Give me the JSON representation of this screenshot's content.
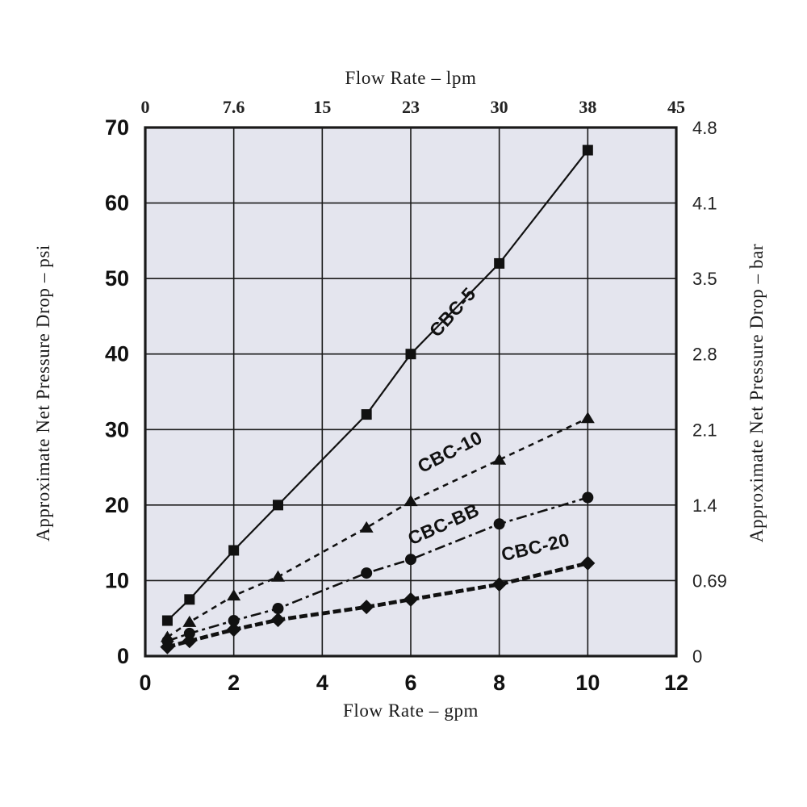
{
  "chart_data": {
    "type": "line",
    "title_top": "Flow Rate – lpm",
    "xlabel_bottom": "Flow Rate – gpm",
    "ylabel_left": "Approximate Net Pressure Drop – psi",
    "ylabel_right": "Approximate Net Pressure Drop – bar",
    "grid": true,
    "legend_position": "inline-curve-labels",
    "plot_bg": "#e4e5ee",
    "grid_color": "#1a1a1a",
    "line_color": "#111111",
    "x_axis_bottom": {
      "unit": "gpm",
      "range": [
        0,
        12
      ],
      "ticks": [
        0,
        2,
        4,
        6,
        8,
        10,
        12
      ]
    },
    "x_axis_top": {
      "unit": "lpm",
      "tick_labels": [
        "0",
        "7.6",
        "15",
        "23",
        "30",
        "38",
        "45"
      ],
      "tick_positions_gpm": [
        0,
        2,
        4,
        6,
        8,
        10,
        12
      ]
    },
    "y_axis_left": {
      "unit": "psi",
      "range": [
        0,
        70
      ],
      "ticks": [
        70,
        60,
        50,
        40,
        30,
        20,
        10,
        0
      ]
    },
    "y_axis_right": {
      "unit": "bar",
      "tick_labels": [
        "4.8",
        "4.1",
        "3.5",
        "2.8",
        "2.1",
        "1.4",
        "0.69",
        "0"
      ],
      "tick_positions_psi": [
        70,
        60,
        50,
        40,
        30,
        20,
        10,
        0
      ]
    },
    "series": [
      {
        "name": "CBC-5",
        "marker": "square",
        "line_style": "solid",
        "x": [
          0.5,
          1,
          2,
          3,
          5,
          6,
          8,
          10
        ],
        "y": [
          4.7,
          7.5,
          14,
          20,
          32,
          40,
          52,
          67
        ],
        "label_at": {
          "x": 7.05,
          "y": 45.0,
          "angle": -48
        }
      },
      {
        "name": "CBC-10",
        "marker": "triangle",
        "line_style": "dashed",
        "x": [
          0.5,
          1,
          2,
          3,
          5,
          6,
          8,
          10
        ],
        "y": [
          2.5,
          4.5,
          8,
          10.5,
          17,
          20.5,
          26,
          31.5
        ],
        "label_at": {
          "x": 6.95,
          "y": 26.3,
          "angle": -27
        }
      },
      {
        "name": "CBC-BB",
        "marker": "circle",
        "line_style": "dash-dot",
        "x": [
          0.5,
          1,
          2,
          3,
          5,
          6,
          8,
          10
        ],
        "y": [
          2,
          3,
          4.7,
          6.3,
          11,
          12.8,
          17.5,
          21
        ],
        "label_at": {
          "x": 6.8,
          "y": 16.7,
          "angle": -24
        }
      },
      {
        "name": "CBC-20",
        "marker": "diamond",
        "line_style": "bold-dashed",
        "x": [
          0.5,
          1,
          2,
          3,
          5,
          6,
          8,
          10
        ],
        "y": [
          1.2,
          2,
          3.5,
          4.8,
          6.5,
          7.5,
          9.5,
          12.3
        ],
        "label_at": {
          "x": 8.85,
          "y": 13.6,
          "angle": -13
        }
      }
    ]
  }
}
